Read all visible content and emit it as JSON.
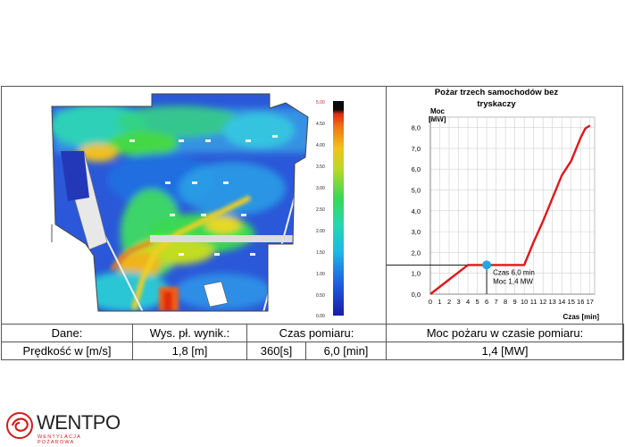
{
  "colorbar": {
    "ticks": [
      "5.00",
      "4.50",
      "4.00",
      "3.50",
      "3.00",
      "2.50",
      "2.00",
      "1.50",
      "1.00",
      "0.50",
      "0.00"
    ]
  },
  "table": {
    "row1": {
      "dane": "Dane:",
      "wys": "Wys. pł. wynik.:",
      "czas": "Czas pomiaru:",
      "moc": "Moc pożaru w czasie pomiaru:"
    },
    "row2": {
      "predkosc": "Prędkość w [m/s]",
      "wys_val": "1,8 [m]",
      "czas_s": "360[s]",
      "czas_min": "6,0 [min]",
      "moc_val": "1,4 [MW]"
    }
  },
  "chart_data": {
    "type": "line",
    "title": "Pożar trzech samochodów bez tryskaczy",
    "ylabel_line1": "Moc",
    "ylabel_line2": "[MW]",
    "xlabel": "Czas [min]",
    "xlim": [
      0,
      17.5
    ],
    "ylim": [
      0,
      8.5
    ],
    "xticks": [
      "0",
      "1",
      "2",
      "3",
      "4",
      "5",
      "6",
      "7",
      "8",
      "9",
      "10",
      "11",
      "12",
      "13",
      "14",
      "15",
      "16",
      "17"
    ],
    "yticks": [
      "0,0",
      "1,0",
      "2,0",
      "3,0",
      "4,0",
      "5,0",
      "6,0",
      "7,0",
      "8,0"
    ],
    "grid": true,
    "series": [
      {
        "color": "#e0161b",
        "x": [
          0,
          4,
          5,
          6,
          7,
          8,
          9,
          10,
          11,
          12,
          13,
          14,
          15,
          16,
          16.5,
          17
        ],
        "y": [
          0,
          1.4,
          1.4,
          1.4,
          1.4,
          1.4,
          1.4,
          1.4,
          2.5,
          3.5,
          4.6,
          5.7,
          6.4,
          7.5,
          7.95,
          8.1
        ]
      }
    ],
    "marker": {
      "x": 6,
      "y": 1.4,
      "color": "#27a4e6",
      "label_line1": "Czas 6,0 min",
      "label_line2": "Moc 1,4 MW"
    },
    "reference_line": {
      "y": 1.4
    }
  },
  "logo": {
    "text": "WENTPO",
    "subtext": "WENTYLACJA POŻAROWA",
    "color": "#d21c1c"
  }
}
